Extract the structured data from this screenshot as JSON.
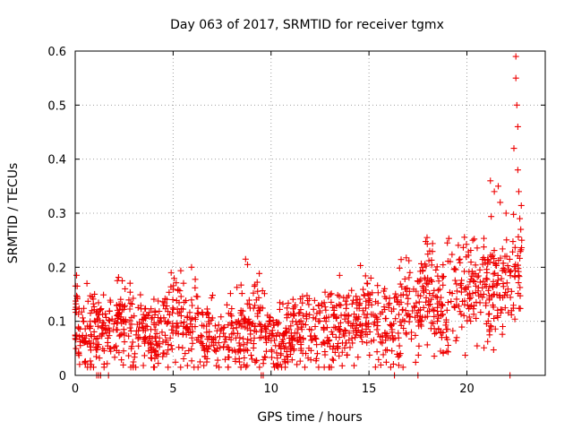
{
  "chart_data": {
    "type": "scatter",
    "title": "Day 063 of 2017, SRMTID for receiver tgmx",
    "xlabel": "GPS time / hours",
    "ylabel": "SRMTID / TECUs",
    "xlim": [
      0,
      24
    ],
    "ylim": [
      0,
      0.6
    ],
    "xticks": [
      0,
      5,
      10,
      15,
      20
    ],
    "yticks": [
      0,
      0.1,
      0.2,
      0.3,
      0.4,
      0.5,
      0.6
    ],
    "ytick_labels": [
      "0",
      "0.1",
      "0.2",
      "0.3",
      "0.4",
      "0.5",
      "0.6"
    ],
    "grid": true,
    "marker": "+",
    "color": "#ee0000",
    "series": [
      {
        "name": "SRMTID",
        "trend": {
          "description": "approximate running-mean level of the dense scatter (hours, TECU)",
          "x": [
            0,
            0.3,
            0.6,
            0.9,
            1.2,
            1.5,
            2,
            2.5,
            3,
            3.5,
            4,
            4.5,
            5,
            5.5,
            6,
            6.5,
            7,
            7.5,
            8,
            8.5,
            9,
            9.5,
            10,
            10.5,
            11,
            11.5,
            12,
            12.5,
            13,
            13.5,
            14,
            14.5,
            15,
            15.5,
            16,
            16.5,
            17,
            17.5,
            18,
            18.5,
            19,
            19.5,
            20,
            20.5,
            21,
            21.5,
            22,
            22.5,
            22.8
          ],
          "y": [
            0.11,
            0.09,
            0.075,
            0.08,
            0.08,
            0.085,
            0.09,
            0.1,
            0.085,
            0.08,
            0.07,
            0.095,
            0.11,
            0.1,
            0.09,
            0.08,
            0.075,
            0.08,
            0.085,
            0.085,
            0.09,
            0.095,
            0.07,
            0.065,
            0.065,
            0.075,
            0.08,
            0.085,
            0.09,
            0.085,
            0.095,
            0.105,
            0.115,
            0.09,
            0.1,
            0.11,
            0.12,
            0.14,
            0.16,
            0.125,
            0.135,
            0.15,
            0.165,
            0.16,
            0.175,
            0.165,
            0.18,
            0.2,
            0.22
          ]
        },
        "spikes": {
          "description": "distinct excursions well above the trend",
          "x": [
            0.1,
            0.6,
            2.4,
            4.9,
            8.7,
            8.8,
            13.5,
            18.1,
            19.0,
            20.3,
            21.2,
            21.4,
            21.6,
            21.7,
            22.0,
            22.4,
            22.5,
            22.5,
            22.55,
            22.6,
            22.6,
            22.65,
            22.7,
            22.75,
            22.8
          ],
          "y": [
            0.165,
            0.17,
            0.175,
            0.19,
            0.215,
            0.205,
            0.185,
            0.23,
            0.245,
            0.25,
            0.36,
            0.34,
            0.35,
            0.32,
            0.3,
            0.42,
            0.59,
            0.55,
            0.5,
            0.46,
            0.38,
            0.34,
            0.29,
            0.27,
            0.25
          ]
        },
        "zero_points": [
          1.1,
          1.2,
          1.3,
          1.7,
          9.5,
          9.6,
          16.3,
          17.5,
          22.2
        ]
      }
    ]
  }
}
